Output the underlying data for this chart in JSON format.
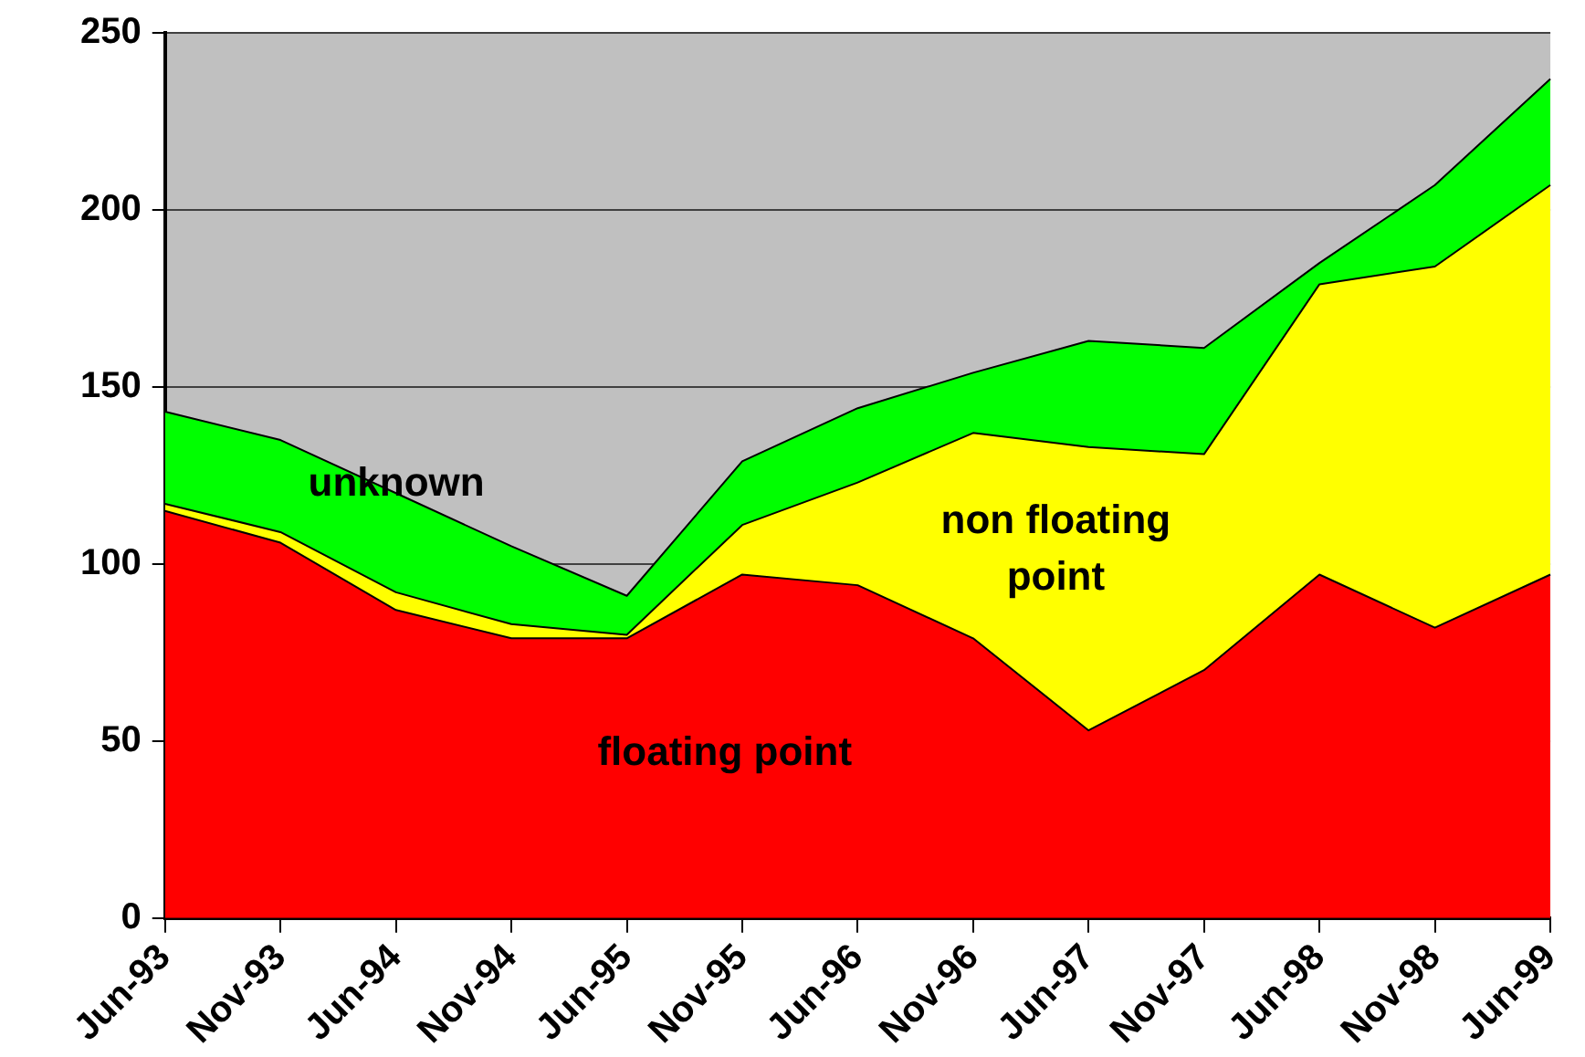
{
  "chart_data": {
    "type": "area",
    "stacked": true,
    "categories": [
      "Jun-93",
      "Nov-93",
      "Jun-94",
      "Nov-94",
      "Jun-95",
      "Nov-95",
      "Jun-96",
      "Nov-96",
      "Jun-97",
      "Nov-97",
      "Jun-98",
      "Nov-98",
      "Jun-99"
    ],
    "series": [
      {
        "name": "floating point",
        "color": "#ff0000",
        "values": [
          115,
          106,
          87,
          79,
          79,
          97,
          94,
          79,
          53,
          70,
          97,
          82,
          97
        ]
      },
      {
        "name": "non floating point",
        "color": "#ffff00",
        "values": [
          2,
          3,
          5,
          4,
          1,
          14,
          29,
          58,
          80,
          61,
          82,
          102,
          110
        ]
      },
      {
        "name": "unknown",
        "color": "#00ff00",
        "values": [
          26,
          26,
          28,
          22,
          11,
          18,
          21,
          17,
          30,
          30,
          6,
          23,
          30
        ]
      }
    ],
    "ylim": [
      0,
      250
    ],
    "yticks": [
      0,
      50,
      100,
      150,
      200,
      250
    ],
    "grid": "y",
    "legend": false,
    "marker": "none"
  }
}
